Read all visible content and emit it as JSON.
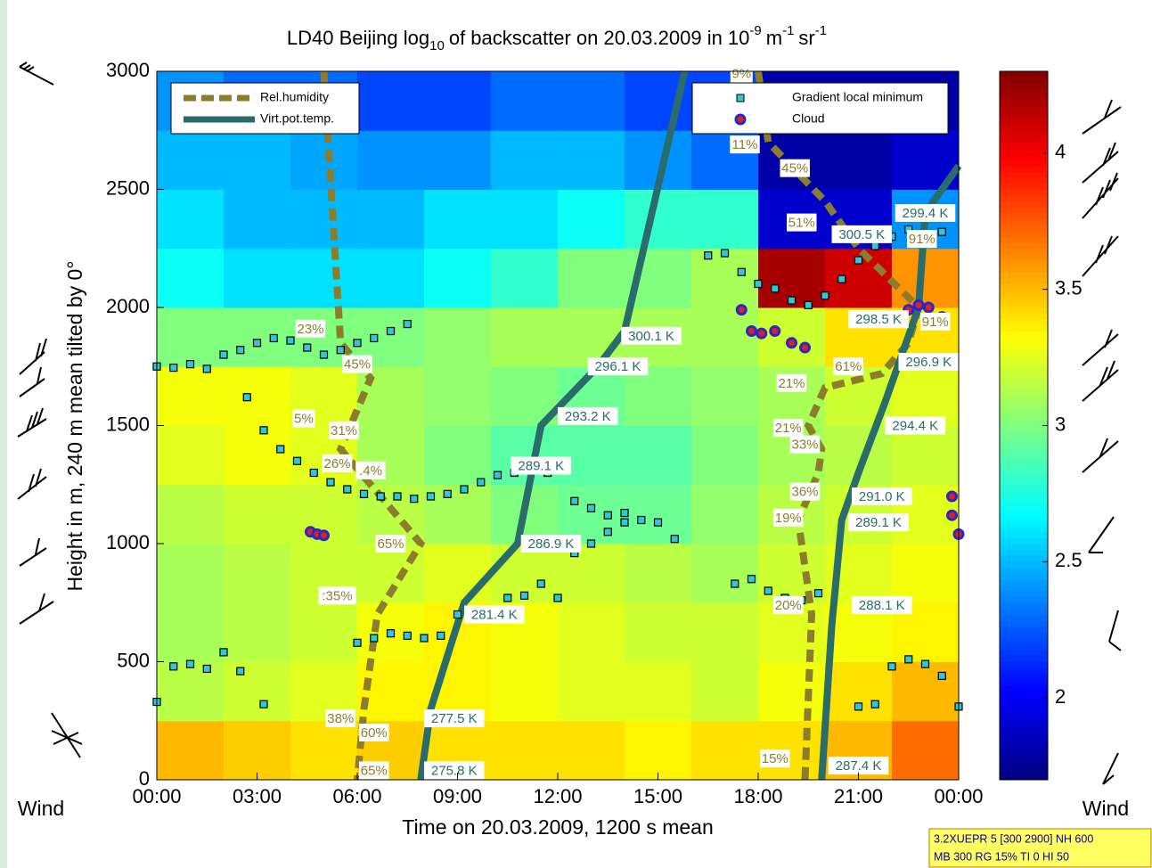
{
  "chart_data": {
    "type": "heatmap",
    "title_parts": [
      {
        "text": "LD40 Beijing log"
      },
      {
        "text": "10",
        "shift": "sub"
      },
      {
        "text": "of backscatter on 20.03.2009 in 10"
      },
      {
        "text": "-9",
        "shift": "sup"
      },
      {
        "text": "m"
      },
      {
        "text": "-1",
        "shift": "sup"
      },
      {
        "text": "sr"
      },
      {
        "text": "-1",
        "shift": "sup"
      }
    ],
    "x_label": "Time on 20.03.2009, 1200 s mean",
    "y_label": "Height in m, 240 m mean tilted by 0°",
    "wind_label": "Wind",
    "xlim": [
      0,
      24
    ],
    "xticks": [
      {
        "value": 0,
        "label": "00:00"
      },
      {
        "value": 3,
        "label": "03:00"
      },
      {
        "value": 6,
        "label": "06:00"
      },
      {
        "value": 9,
        "label": "09:00"
      },
      {
        "value": 12,
        "label": "12:00"
      },
      {
        "value": 15,
        "label": "15:00"
      },
      {
        "value": 18,
        "label": "18:00"
      },
      {
        "value": 21,
        "label": "21:00"
      },
      {
        "value": 24,
        "label": "00:00"
      }
    ],
    "ylim": [
      0,
      3000
    ],
    "yticks": [
      0,
      500,
      1000,
      1500,
      2000,
      2500,
      3000
    ],
    "colorbar": {
      "clim": [
        1.7,
        4.3
      ],
      "ticks": [
        2,
        2.5,
        3,
        3.5,
        4
      ],
      "colormap": "jet"
    },
    "heatmap": {
      "x_edges": [
        0,
        2,
        4,
        6,
        8,
        10,
        12,
        14,
        16,
        18,
        20,
        22,
        24
      ],
      "y_edges": [
        0,
        250,
        500,
        750,
        1000,
        1250,
        1500,
        1750,
        2000,
        2250,
        2500,
        2750,
        3000
      ],
      "values": [
        [
          3.5,
          3.45,
          3.4,
          3.45,
          3.4,
          3.4,
          3.4,
          3.35,
          3.4,
          3.4,
          3.5,
          3.7
        ],
        [
          3.15,
          3.2,
          3.25,
          3.35,
          3.35,
          3.3,
          3.25,
          3.25,
          3.2,
          3.3,
          3.4,
          3.5
        ],
        [
          3.1,
          3.15,
          3.2,
          3.3,
          3.35,
          3.3,
          3.25,
          3.2,
          3.2,
          3.25,
          3.3,
          3.35
        ],
        [
          3.1,
          3.15,
          3.2,
          3.2,
          3.25,
          3.2,
          3.2,
          3.15,
          3.1,
          3.2,
          3.25,
          3.3
        ],
        [
          3.15,
          3.2,
          3.2,
          3.15,
          3.1,
          3.0,
          2.95,
          2.95,
          3.05,
          3.15,
          3.2,
          3.25
        ],
        [
          3.25,
          3.3,
          3.25,
          3.1,
          3.0,
          2.9,
          2.9,
          2.9,
          3.0,
          3.1,
          3.15,
          3.2
        ],
        [
          3.3,
          3.3,
          3.25,
          3.1,
          3.05,
          3.0,
          2.95,
          3.0,
          3.05,
          3.1,
          3.2,
          3.25
        ],
        [
          3.0,
          3.0,
          3.0,
          3.0,
          3.05,
          3.1,
          3.1,
          3.1,
          3.1,
          3.2,
          3.4,
          3.4
        ],
        [
          2.7,
          2.6,
          2.6,
          2.6,
          2.7,
          2.8,
          3.0,
          3.0,
          3.1,
          4.2,
          4.1,
          3.6
        ],
        [
          2.6,
          2.5,
          2.5,
          2.5,
          2.6,
          2.6,
          2.7,
          2.8,
          2.8,
          1.9,
          1.9,
          2.4
        ],
        [
          2.5,
          2.5,
          2.45,
          2.4,
          2.4,
          2.5,
          2.5,
          2.4,
          2.3,
          1.8,
          1.8,
          1.9
        ],
        [
          2.4,
          2.3,
          2.3,
          2.2,
          2.2,
          2.3,
          2.3,
          2.2,
          2.2,
          1.8,
          1.8,
          1.8
        ]
      ]
    },
    "series": [
      {
        "name": "Rel.humidity",
        "kind": "line",
        "style": "dashed",
        "color": "#8c7d2d",
        "legend": "upper left",
        "lines": [
          {
            "x": [
              5.0,
              5.5,
              6.4,
              5.5,
              7.9,
              6.6,
              6.2,
              6.0
            ],
            "y": [
              3000,
              1850,
              1700,
              1400,
              1000,
              700,
              300,
              0
            ]
          },
          {
            "x": [
              18.0,
              18.3,
              20.0,
              21.0,
              22.8,
              22.5,
              21.7,
              20.0,
              19.5,
              19.9,
              19.8,
              19.2,
              19.6,
              19.4
            ],
            "y": [
              3000,
              2700,
              2450,
              2250,
              2000,
              1850,
              1720,
              1660,
              1500,
              1400,
              1300,
              1100,
              700,
              0
            ]
          }
        ],
        "annotations": [
          {
            "x": 4.6,
            "y": 1910,
            "label": "23%"
          },
          {
            "x": 6.0,
            "y": 1760,
            "label": "45%"
          },
          {
            "x": 4.4,
            "y": 1530,
            "label": "5%"
          },
          {
            "x": 5.6,
            "y": 1480,
            "label": "31%"
          },
          {
            "x": 5.4,
            "y": 1340,
            "label": "26%"
          },
          {
            "x": 6.4,
            "y": 1310,
            "label": ".4%"
          },
          {
            "x": 7.0,
            "y": 1000,
            "label": "65%"
          },
          {
            "x": 5.4,
            "y": 780,
            "label": ":35%"
          },
          {
            "x": 5.5,
            "y": 260,
            "label": "38%"
          },
          {
            "x": 6.5,
            "y": 200,
            "label": "60%"
          },
          {
            "x": 6.5,
            "y": 40,
            "label": "65%"
          },
          {
            "x": 17.5,
            "y": 2990,
            "label": "9%"
          },
          {
            "x": 17.6,
            "y": 2690,
            "label": "11%"
          },
          {
            "x": 19.1,
            "y": 2590,
            "label": "45%"
          },
          {
            "x": 19.3,
            "y": 2360,
            "label": "51%"
          },
          {
            "x": 22.9,
            "y": 2290,
            "label": "91%"
          },
          {
            "x": 23.3,
            "y": 1940,
            "label": "91%"
          },
          {
            "x": 20.7,
            "y": 1750,
            "label": "61%"
          },
          {
            "x": 19.0,
            "y": 1680,
            "label": "21%"
          },
          {
            "x": 18.9,
            "y": 1490,
            "label": "21%"
          },
          {
            "x": 19.4,
            "y": 1420,
            "label": "33%"
          },
          {
            "x": 19.4,
            "y": 1220,
            "label": "36%"
          },
          {
            "x": 18.9,
            "y": 1110,
            "label": "19%"
          },
          {
            "x": 18.9,
            "y": 740,
            "label": "20%"
          },
          {
            "x": 18.5,
            "y": 90,
            "label": "15%"
          }
        ]
      },
      {
        "name": "Virt.pot.temp.",
        "kind": "line",
        "style": "solid",
        "color": "#2a6b6b",
        "legend": "upper left",
        "lines": [
          {
            "x": [
              7.9,
              8.2,
              9.2,
              10.8,
              11.5,
              13.2,
              14.0,
              15.8
            ],
            "y": [
              0,
              300,
              750,
              1000,
              1500,
              1750,
              1900,
              3000
            ]
          },
          {
            "x": [
              19.9,
              20.2,
              20.5,
              21.0,
              21.8,
              22.3,
              22.8,
              23.0,
              24.0
            ],
            "y": [
              0,
              650,
              1100,
              1300,
              1600,
              1800,
              2000,
              2400,
              2600
            ]
          }
        ],
        "annotations": [
          {
            "x": 8.9,
            "y": 40,
            "label": "275.8 K"
          },
          {
            "x": 8.9,
            "y": 260,
            "label": "277.5 K"
          },
          {
            "x": 10.1,
            "y": 700,
            "label": "281.4 K"
          },
          {
            "x": 11.8,
            "y": 1000,
            "label": "286.9 K"
          },
          {
            "x": 11.5,
            "y": 1330,
            "label": "289.1 K"
          },
          {
            "x": 12.9,
            "y": 1540,
            "label": "293.2 K"
          },
          {
            "x": 13.8,
            "y": 1750,
            "label": "296.1 K"
          },
          {
            "x": 14.8,
            "y": 1880,
            "label": "300.1 K"
          },
          {
            "x": 21.0,
            "y": 60,
            "label": "287.4 K"
          },
          {
            "x": 21.7,
            "y": 740,
            "label": "288.1 K"
          },
          {
            "x": 21.6,
            "y": 1090,
            "label": "289.1 K"
          },
          {
            "x": 21.7,
            "y": 1200,
            "label": "291.0 K"
          },
          {
            "x": 22.7,
            "y": 1500,
            "label": "294.4 K"
          },
          {
            "x": 23.1,
            "y": 1770,
            "label": "296.9 K"
          },
          {
            "x": 21.6,
            "y": 1950,
            "label": "298.5 K"
          },
          {
            "x": 21.1,
            "y": 2310,
            "label": "300.5 K"
          },
          {
            "x": 23.0,
            "y": 2400,
            "label": "299.4 K"
          }
        ]
      },
      {
        "name": "Gradient local minimum",
        "kind": "scatter",
        "marker": "square",
        "color": "#30c8d8",
        "legend": "upper right",
        "lines": [
          {
            "x": [
              0,
              0.5,
              1,
              1.5,
              2,
              2.5,
              3,
              3.5,
              4,
              4.5,
              5,
              5.5,
              6,
              6.5,
              7,
              7.5
            ],
            "y": [
              1750,
              1745,
              1760,
              1740,
              1800,
              1820,
              1850,
              1870,
              1860,
              1830,
              1800,
              1820,
              1850,
              1870,
              1900,
              1930
            ]
          },
          {
            "x": [
              2.7,
              3.2,
              3.7,
              4.2,
              4.7,
              5.2,
              5.7,
              6.2,
              6.7,
              7.2,
              7.7,
              8.2,
              8.7,
              9.2,
              9.7,
              10.2,
              10.7,
              11.2,
              11.7,
              12.2
            ],
            "y": [
              1620,
              1480,
              1400,
              1350,
              1300,
              1260,
              1230,
              1210,
              1200,
              1200,
              1190,
              1200,
              1210,
              1230,
              1260,
              1290,
              1300,
              1320,
              1300,
              1310
            ]
          },
          {
            "x": [
              12.5,
              13,
              13.5,
              14,
              14.5,
              15,
              15.5
            ],
            "y": [
              1180,
              1150,
              1120,
              1130,
              1100,
              1090,
              1020
            ]
          },
          {
            "x": [
              0,
              0.5,
              1,
              1.5,
              2,
              2.5,
              3.2
            ],
            "y": [
              330,
              480,
              490,
              470,
              540,
              460,
              320
            ]
          },
          {
            "x": [
              6,
              6.5,
              7,
              7.5,
              8,
              8.5,
              9,
              9.5,
              10,
              10.5
            ],
            "y": [
              580,
              600,
              620,
              610,
              600,
              610,
              700,
              720,
              700,
              720
            ]
          },
          {
            "x": [
              10.5,
              11,
              11.5,
              12,
              12.5,
              13,
              13.5,
              14
            ],
            "y": [
              770,
              780,
              830,
              770,
              960,
              1000,
              1050,
              1090
            ]
          },
          {
            "x": [
              17.3,
              17.8,
              18.3,
              18.8,
              19.3,
              19.8
            ],
            "y": [
              830,
              850,
              800,
              770,
              760,
              790
            ]
          },
          {
            "x": [
              21,
              21.5,
              22,
              22.5,
              23,
              23.5,
              24
            ],
            "y": [
              310,
              320,
              480,
              510,
              490,
              440,
              310
            ]
          },
          {
            "x": [
              16.5,
              17,
              17.5,
              18,
              18.5,
              19,
              19.5,
              20,
              20.5,
              21,
              21.5,
              22,
              22.5,
              23,
              23.5
            ],
            "y": [
              2220,
              2230,
              2150,
              2100,
              2080,
              2030,
              2010,
              2050,
              2120,
              2200,
              2260,
              2300,
              2330,
              2300,
              2320
            ]
          }
        ]
      },
      {
        "name": "Cloud",
        "kind": "scatter",
        "marker": "circle",
        "color": "#e02020",
        "edge": "#2828c8",
        "legend": "upper right",
        "lines": [
          {
            "x": [
              4.6,
              4.8,
              5.0,
              17.5,
              17.8,
              18.1,
              18.5,
              19.0,
              19.4,
              22.5,
              22.8,
              23.1,
              23.5,
              23.8,
              23.8,
              24.0
            ],
            "y": [
              1050,
              1040,
              1035,
              1990,
              1900,
              1890,
              1900,
              1850,
              1830,
              1990,
              2010,
              2000,
              1960,
              1200,
              1120,
              1040
            ]
          }
        ]
      }
    ],
    "info_box": [
      "3.2XUEPR 5 [300 2900] NH 600",
      "MB 300 RG 15% TI 0 HI 50"
    ]
  }
}
